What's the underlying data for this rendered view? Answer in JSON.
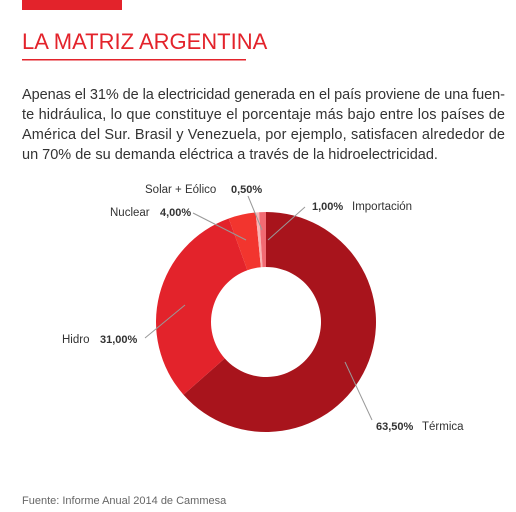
{
  "chart_data": {
    "type": "pie",
    "donut": true,
    "title": "LA MATRIZ ARGENTINA",
    "subtitle": [
      "Apenas el 31% de la electricidad generada en el país proviene de una fuen-",
      "te hidráulica, lo que constituye el porcentaje más bajo entre los países de",
      "América del Sur. Brasil y Venezuela, por ejemplo, satisfacen alrededor de",
      "un 70% de su demanda eléctrica a través de la hidroelectricidad."
    ],
    "categories": [
      "Térmica",
      "Hidro",
      "Nuclear",
      "Solar + Eólico",
      "Importación"
    ],
    "values": [
      63.5,
      31,
      4,
      0.5,
      1
    ],
    "value_labels": [
      "63,50%",
      "31,00%",
      "4,00%",
      "0,50%",
      "1,00%"
    ],
    "colors": [
      "#a8141c",
      "#e3232b",
      "#f2352e",
      "#f9b4b4",
      "#f26b73"
    ],
    "source": "Fuente: Informe Anual 2014 de Cammesa"
  }
}
